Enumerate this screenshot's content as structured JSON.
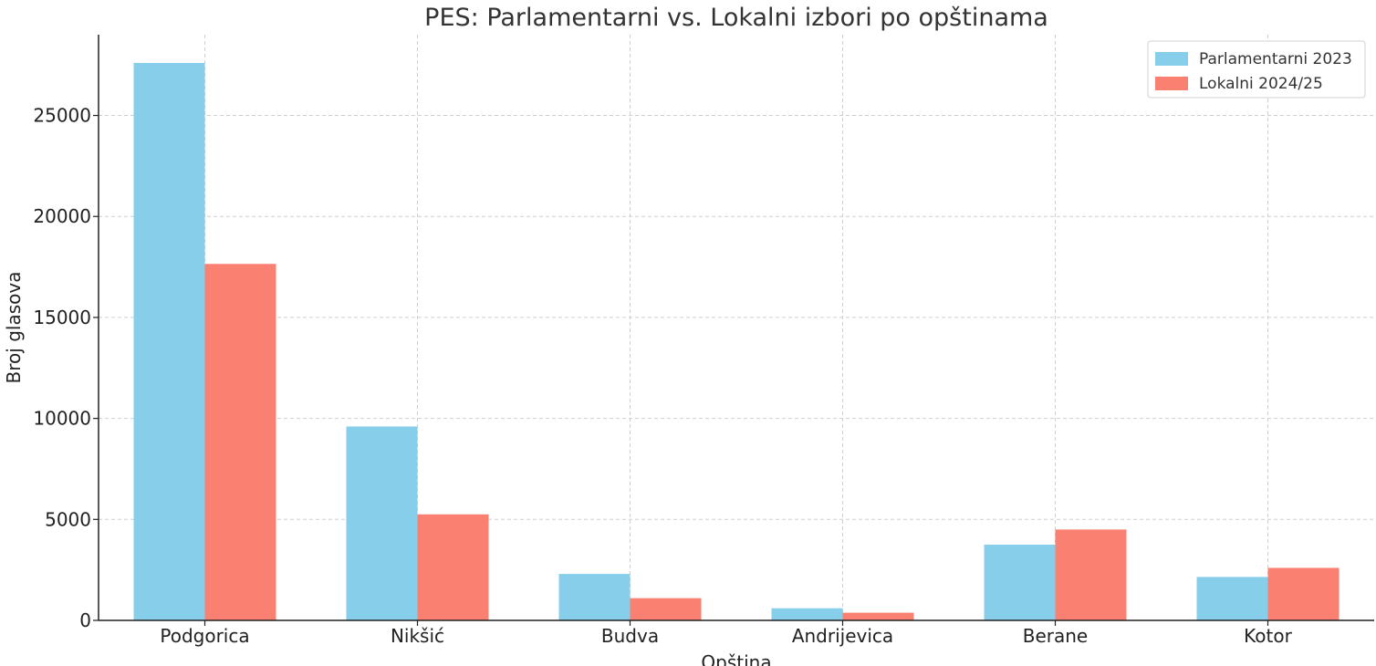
{
  "chart_data": {
    "type": "bar",
    "title": "PES: Parlamentarni vs. Lokalni izbori po opštinama",
    "xlabel": "Opština",
    "ylabel": "Broj glasova",
    "categories": [
      "Podgorica",
      "Nikšić",
      "Budva",
      "Andrijevica",
      "Berane",
      "Kotor"
    ],
    "series": [
      {
        "name": "Parlamentarni 2023",
        "color": "#87ceeb",
        "values": [
          27600,
          9600,
          2300,
          600,
          3750,
          2150
        ]
      },
      {
        "name": "Lokalni 2024/25",
        "color": "#fa8072",
        "values": [
          17650,
          5250,
          1100,
          380,
          4500,
          2600
        ]
      }
    ],
    "ylim": [
      0,
      29000
    ],
    "yticks": [
      0,
      5000,
      10000,
      15000,
      20000,
      25000
    ],
    "grid": true,
    "legend_position": "top-right"
  }
}
